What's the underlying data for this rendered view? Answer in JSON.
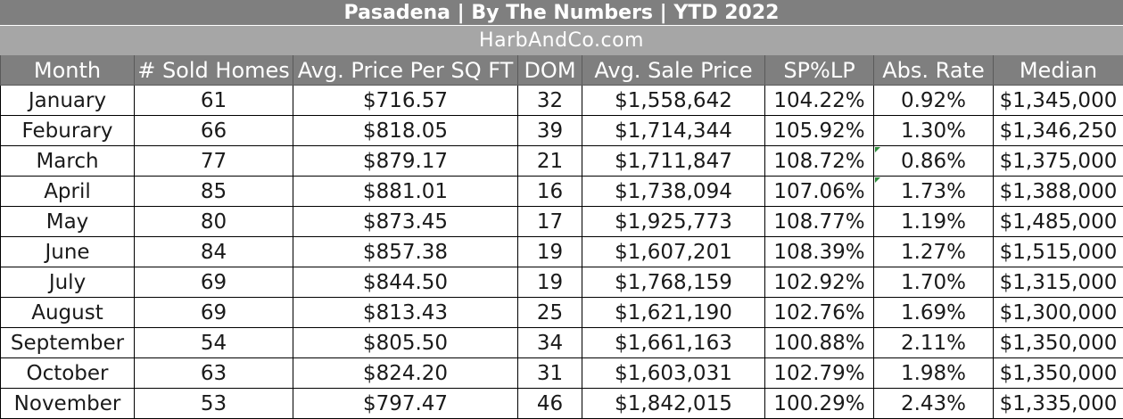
{
  "title": "Pasadena  |  By The Numbers   |   YTD 2022",
  "subtitle": "HarbAndCo.com",
  "columns": [
    "Month",
    "# Sold Homes",
    "Avg. Price Per SQ FT",
    "DOM",
    "Avg. Sale Price",
    "SP%LP",
    "Abs. Rate",
    "Median"
  ],
  "rows": [
    [
      "January",
      "61",
      "$716.57",
      "32",
      "$1,558,642",
      "104.22%",
      "0.92%",
      "$1,345,000"
    ],
    [
      "Feburary",
      "66",
      "$818.05",
      "39",
      "$1,714,344",
      "105.92%",
      "1.30%",
      "$1,346,250"
    ],
    [
      "March",
      "77",
      "$879.17",
      "21",
      "$1,711,847",
      "108.72%",
      "0.86%",
      "$1,375,000"
    ],
    [
      "April",
      "85",
      "$881.01",
      "16",
      "$1,738,094",
      "107.06%",
      "1.73%",
      "$1,388,000"
    ],
    [
      "May",
      "80",
      "$873.45",
      "17",
      "$1,925,773",
      "108.77%",
      "1.19%",
      "$1,485,000"
    ],
    [
      "June",
      "84",
      "$857.38",
      "19",
      "$1,607,201",
      "108.39%",
      "1.27%",
      "$1,515,000"
    ],
    [
      "July",
      "69",
      "$844.50",
      "19",
      "$1,768,159",
      "102.92%",
      "1.70%",
      "$1,315,000"
    ],
    [
      "August",
      "69",
      "$813.43",
      "25",
      "$1,621,190",
      "102.76%",
      "1.69%",
      "$1,300,000"
    ],
    [
      "September",
      "54",
      "$805.50",
      "34",
      "$1,661,163",
      "100.88%",
      "2.11%",
      "$1,350,000"
    ],
    [
      "October",
      "63",
      "$824.20",
      "31",
      "$1,603,031",
      "102.79%",
      "1.98%",
      "$1,350,000"
    ],
    [
      "November",
      "53",
      "$797.47",
      "46",
      "$1,842,015",
      "100.29%",
      "2.43%",
      "$1,335,000"
    ]
  ],
  "colors": {
    "header_bg": "#7f7f7f",
    "subheader_bg": "#a6a6a6",
    "header_text": "#ffffff",
    "cell_border": "#000000",
    "error_indicator": "#2e8b3a"
  }
}
